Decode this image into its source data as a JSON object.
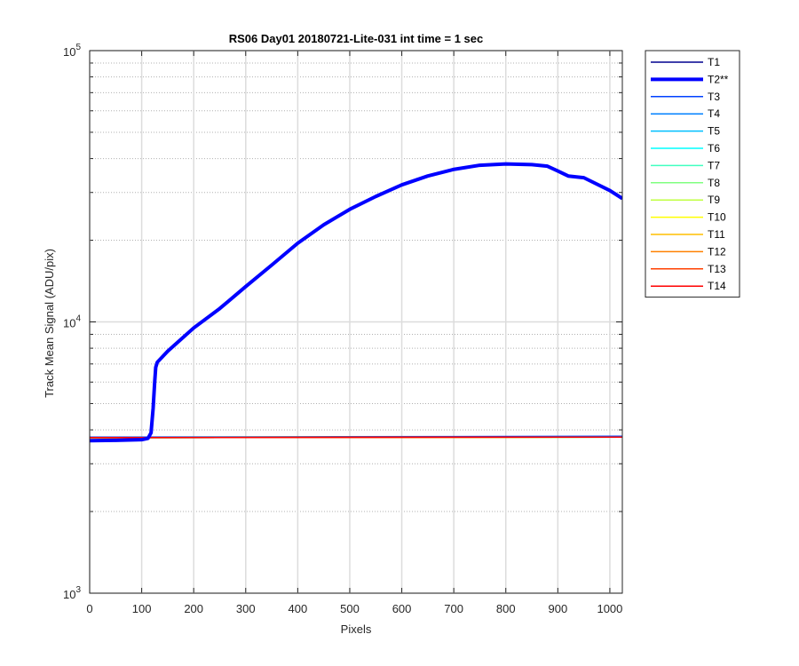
{
  "chart_data": {
    "type": "line",
    "title": "RS06 Day01 20180721-Lite-031 int time = 1 sec",
    "xlabel": "Pixels",
    "ylabel": "Track Mean Signal (ADU/pix)",
    "xlim": [
      0,
      1024
    ],
    "ylim": [
      1000,
      100000
    ],
    "yscale": "log",
    "grid": true,
    "legend_position": "outside-top-right",
    "x_ticks": [
      0,
      100,
      200,
      300,
      400,
      500,
      600,
      700,
      800,
      900,
      1000
    ],
    "x_tick_labels": [
      "0",
      "100",
      "200",
      "300",
      "400",
      "500",
      "600",
      "700",
      "800",
      "900",
      "1000"
    ],
    "y_ticks": [
      1000,
      10000,
      100000
    ],
    "y_tick_labels": [
      {
        "base": "10",
        "exp": "3"
      },
      {
        "base": "10",
        "exp": "4"
      },
      {
        "base": "10",
        "exp": "5"
      }
    ],
    "series": [
      {
        "name": "T1",
        "color": "#00008f",
        "x": [
          0,
          1024
        ],
        "y": [
          3750,
          3770
        ]
      },
      {
        "name": "T2**",
        "color": "#0000ff",
        "bold": true,
        "x": [
          0,
          50,
          100,
          112,
          118,
          122,
          125,
          127,
          130,
          150,
          200,
          250,
          300,
          350,
          400,
          450,
          500,
          550,
          600,
          650,
          700,
          750,
          800,
          850,
          880,
          900,
          920,
          950,
          1000,
          1024
        ],
        "y": [
          3650,
          3660,
          3680,
          3720,
          3900,
          4800,
          6000,
          6800,
          7100,
          7800,
          9500,
          11200,
          13500,
          16200,
          19500,
          22800,
          26000,
          29000,
          32000,
          34500,
          36500,
          37800,
          38200,
          38000,
          37500,
          36000,
          34500,
          34000,
          30500,
          28500
        ]
      },
      {
        "name": "T3",
        "color": "#0040ff",
        "x": [
          0,
          1024
        ],
        "y": [
          3760,
          3790
        ]
      },
      {
        "name": "T4",
        "color": "#0080ff",
        "x": [
          0,
          1024
        ],
        "y": [
          3740,
          3760
        ]
      },
      {
        "name": "T5",
        "color": "#00bfff",
        "x": [
          0,
          1024
        ],
        "y": [
          3745,
          3765
        ]
      },
      {
        "name": "T6",
        "color": "#00ffff",
        "x": [
          0,
          1024
        ],
        "y": [
          3740,
          3760
        ]
      },
      {
        "name": "T7",
        "color": "#40ffbf",
        "x": [
          0,
          1024
        ],
        "y": [
          3745,
          3762
        ]
      },
      {
        "name": "T8",
        "color": "#80ff80",
        "x": [
          0,
          1024
        ],
        "y": [
          3742,
          3760
        ]
      },
      {
        "name": "T9",
        "color": "#bfff40",
        "x": [
          0,
          1024
        ],
        "y": [
          3744,
          3762
        ]
      },
      {
        "name": "T10",
        "color": "#ffff00",
        "x": [
          0,
          1024
        ],
        "y": [
          3742,
          3760
        ]
      },
      {
        "name": "T11",
        "color": "#ffbf00",
        "x": [
          0,
          1024
        ],
        "y": [
          3744,
          3761
        ]
      },
      {
        "name": "T12",
        "color": "#ff8000",
        "x": [
          0,
          1024
        ],
        "y": [
          3743,
          3760
        ]
      },
      {
        "name": "T13",
        "color": "#ff4000",
        "x": [
          0,
          1024
        ],
        "y": [
          3744,
          3761
        ]
      },
      {
        "name": "T14",
        "color": "#ff0000",
        "x": [
          0,
          1024
        ],
        "y": [
          3745,
          3762
        ]
      }
    ]
  }
}
